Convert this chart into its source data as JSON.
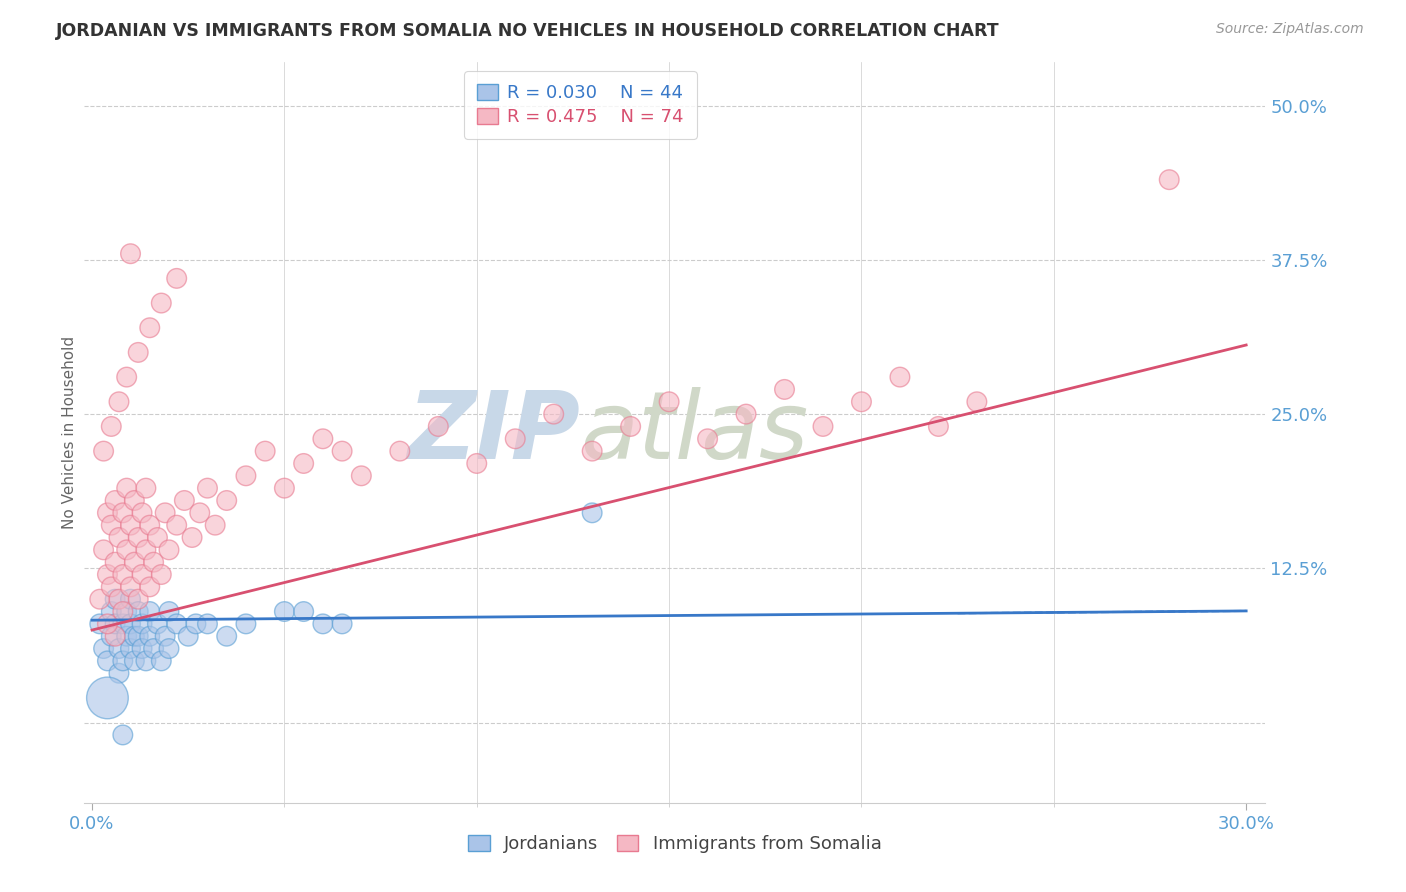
{
  "title": "JORDANIAN VS IMMIGRANTS FROM SOMALIA NO VEHICLES IN HOUSEHOLD CORRELATION CHART",
  "source": "Source: ZipAtlas.com",
  "ylabel": "No Vehicles in Household",
  "y_ticks": [
    0.0,
    0.125,
    0.25,
    0.375,
    0.5
  ],
  "y_tick_labels": [
    "",
    "12.5%",
    "25.0%",
    "37.5%",
    "50.0%"
  ],
  "x_lim": [
    -0.002,
    0.305
  ],
  "y_lim": [
    -0.065,
    0.535
  ],
  "x_ticks": [
    0.0,
    0.3
  ],
  "x_tick_labels": [
    "0.0%",
    "30.0%"
  ],
  "legend_r1": "R = 0.030",
  "legend_n1": "N = 44",
  "legend_r2": "R = 0.475",
  "legend_n2": "N = 74",
  "color_jordanian_fill": "#aac4e8",
  "color_jordanian_edge": "#5a9fd4",
  "color_somalia_fill": "#f5b8c4",
  "color_somalia_edge": "#e87a90",
  "color_line_jordanian": "#3878c8",
  "color_line_somalia": "#d85070",
  "watermark_zip": "ZIP",
  "watermark_atlas": "atlas",
  "watermark_color": "#d0dde8",
  "grid_color": "#cccccc",
  "title_color": "#333333",
  "axis_color": "#5a9fd4",
  "jordanian_x": [
    0.002,
    0.003,
    0.004,
    0.005,
    0.005,
    0.006,
    0.006,
    0.007,
    0.007,
    0.008,
    0.008,
    0.009,
    0.009,
    0.01,
    0.01,
    0.01,
    0.011,
    0.011,
    0.012,
    0.012,
    0.013,
    0.013,
    0.014,
    0.015,
    0.015,
    0.016,
    0.017,
    0.018,
    0.019,
    0.02,
    0.02,
    0.022,
    0.025,
    0.027,
    0.03,
    0.035,
    0.04,
    0.05,
    0.055,
    0.06,
    0.065,
    0.13,
    0.004,
    0.008
  ],
  "jordanian_y": [
    0.08,
    0.06,
    0.05,
    0.09,
    0.07,
    0.1,
    0.08,
    0.06,
    0.04,
    0.08,
    0.05,
    0.07,
    0.09,
    0.06,
    0.08,
    0.1,
    0.07,
    0.05,
    0.09,
    0.07,
    0.06,
    0.08,
    0.05,
    0.07,
    0.09,
    0.06,
    0.08,
    0.05,
    0.07,
    0.06,
    0.09,
    0.08,
    0.07,
    0.08,
    0.08,
    0.07,
    0.08,
    0.09,
    0.09,
    0.08,
    0.08,
    0.17,
    0.02,
    -0.01
  ],
  "jordanian_size_big": [
    0,
    7
  ],
  "jordanian_sizes": [
    200,
    200,
    200,
    200,
    200,
    200,
    200,
    200,
    200,
    200,
    200,
    200,
    200,
    200,
    200,
    200,
    200,
    200,
    200,
    200,
    200,
    200,
    200,
    200,
    200,
    200,
    200,
    200,
    200,
    200,
    200,
    200,
    200,
    200,
    200,
    200,
    200,
    200,
    200,
    200,
    200,
    200,
    900,
    200
  ],
  "somalia_x": [
    0.002,
    0.003,
    0.004,
    0.004,
    0.005,
    0.005,
    0.006,
    0.006,
    0.007,
    0.007,
    0.008,
    0.008,
    0.009,
    0.009,
    0.01,
    0.01,
    0.011,
    0.011,
    0.012,
    0.012,
    0.013,
    0.013,
    0.014,
    0.014,
    0.015,
    0.015,
    0.016,
    0.017,
    0.018,
    0.019,
    0.02,
    0.022,
    0.024,
    0.026,
    0.028,
    0.03,
    0.032,
    0.035,
    0.04,
    0.045,
    0.05,
    0.055,
    0.06,
    0.065,
    0.07,
    0.08,
    0.09,
    0.1,
    0.11,
    0.12,
    0.13,
    0.14,
    0.15,
    0.16,
    0.17,
    0.18,
    0.19,
    0.2,
    0.21,
    0.22,
    0.23,
    0.003,
    0.005,
    0.007,
    0.009,
    0.012,
    0.015,
    0.018,
    0.022,
    0.01,
    0.008,
    0.006,
    0.004,
    0.28
  ],
  "somalia_y": [
    0.1,
    0.14,
    0.12,
    0.17,
    0.11,
    0.16,
    0.13,
    0.18,
    0.1,
    0.15,
    0.12,
    0.17,
    0.14,
    0.19,
    0.11,
    0.16,
    0.13,
    0.18,
    0.1,
    0.15,
    0.12,
    0.17,
    0.14,
    0.19,
    0.11,
    0.16,
    0.13,
    0.15,
    0.12,
    0.17,
    0.14,
    0.16,
    0.18,
    0.15,
    0.17,
    0.19,
    0.16,
    0.18,
    0.2,
    0.22,
    0.19,
    0.21,
    0.23,
    0.22,
    0.2,
    0.22,
    0.24,
    0.21,
    0.23,
    0.25,
    0.22,
    0.24,
    0.26,
    0.23,
    0.25,
    0.27,
    0.24,
    0.26,
    0.28,
    0.24,
    0.26,
    0.22,
    0.24,
    0.26,
    0.28,
    0.3,
    0.32,
    0.34,
    0.36,
    0.38,
    0.09,
    0.07,
    0.08,
    0.44
  ],
  "somalia_sizes": [
    200,
    200,
    200,
    200,
    200,
    200,
    200,
    200,
    200,
    200,
    200,
    200,
    200,
    200,
    200,
    200,
    200,
    200,
    200,
    200,
    200,
    200,
    200,
    200,
    200,
    200,
    200,
    200,
    200,
    200,
    200,
    200,
    200,
    200,
    200,
    200,
    200,
    200,
    200,
    200,
    200,
    200,
    200,
    200,
    200,
    200,
    200,
    200,
    200,
    200,
    200,
    200,
    200,
    200,
    200,
    200,
    200,
    200,
    200,
    200,
    200,
    200,
    200,
    200,
    200,
    200,
    200,
    200,
    200,
    200,
    200,
    200,
    200,
    200
  ]
}
